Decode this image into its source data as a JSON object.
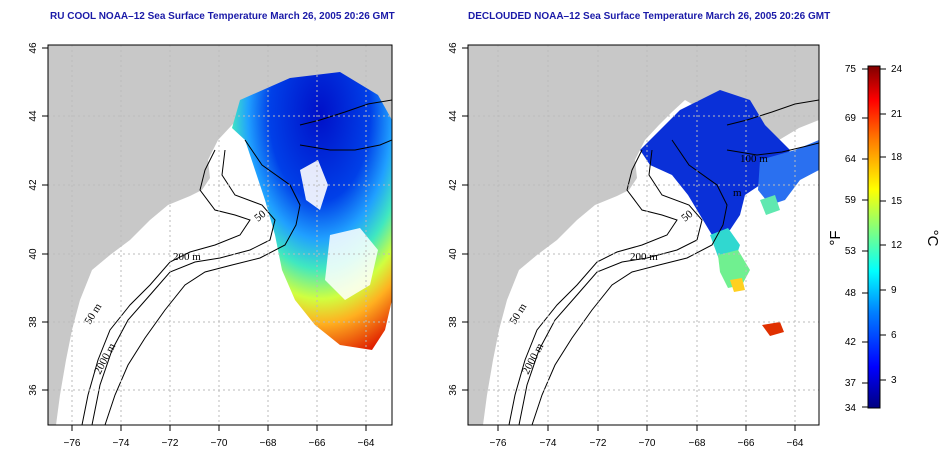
{
  "titles": {
    "left": "RU COOL NOAA–12 Sea Surface Temperature March 26, 2005 20:26 GMT",
    "right": "DECLOUDED NOAA–12 Sea Surface Temperature March 26, 2005 20:26 GMT"
  },
  "axes": {
    "lon_ticks": [
      "−76",
      "−74",
      "−72",
      "−70",
      "−68",
      "−66",
      "−64"
    ],
    "lon_values": [
      -76,
      -74,
      -72,
      -70,
      -68,
      -66,
      -64
    ],
    "lat_ticks": [
      "36",
      "38",
      "40",
      "42",
      "44",
      "46"
    ],
    "lat_values": [
      36,
      38,
      40,
      42,
      44,
      46
    ],
    "lon_range": [
      -77,
      -63
    ],
    "lat_range": [
      35,
      46
    ]
  },
  "contours": {
    "left": [
      "200 m",
      "50 m",
      "2000 m",
      "50"
    ],
    "right": [
      "200 m",
      "50 m",
      "2000 m",
      "50",
      "100 m",
      "m"
    ]
  },
  "colorbar": {
    "fahrenheit_label": "°F",
    "celsius_label": "°C",
    "fahrenheit_ticks": [
      "75",
      "69",
      "64",
      "59",
      "53",
      "48",
      "42",
      "37",
      "34"
    ],
    "celsius_ticks": [
      "24",
      "21",
      "18",
      "15",
      "12",
      "9",
      "6",
      "3"
    ],
    "celsius_range": [
      1,
      24
    ],
    "fahrenheit_range": [
      34,
      75
    ],
    "colors": [
      "#000080",
      "#0000ff",
      "#0080ff",
      "#00ffff",
      "#80ff80",
      "#ffff00",
      "#ff8000",
      "#ff0000",
      "#800000"
    ]
  },
  "colors": {
    "land": "#c8c8c8",
    "grid": "#bbbbbb",
    "title": "#1a1aa8"
  }
}
